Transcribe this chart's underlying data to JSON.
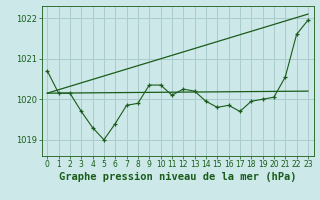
{
  "bg_color": "#cce8e8",
  "grid_color": "#aacccc",
  "line_color": "#1a5c1a",
  "title": "Graphe pression niveau de la mer (hPa)",
  "xlim": [
    -0.5,
    23.5
  ],
  "ylim": [
    1018.6,
    1022.3
  ],
  "yticks": [
    1019,
    1020,
    1021,
    1022
  ],
  "xticks": [
    0,
    1,
    2,
    3,
    4,
    5,
    6,
    7,
    8,
    9,
    10,
    11,
    12,
    13,
    14,
    15,
    16,
    17,
    18,
    19,
    20,
    21,
    22,
    23
  ],
  "series1_x": [
    0,
    1,
    2,
    3,
    4,
    5,
    6,
    7,
    8,
    9,
    10,
    11,
    12,
    13,
    14,
    15,
    16,
    17,
    18,
    19,
    20,
    21,
    22,
    23
  ],
  "series1_y": [
    1020.7,
    1020.15,
    1020.15,
    1019.7,
    1019.3,
    1019.0,
    1019.4,
    1019.85,
    1019.9,
    1020.35,
    1020.35,
    1020.1,
    1020.25,
    1020.2,
    1019.95,
    1019.8,
    1019.85,
    1019.7,
    1019.95,
    1020.0,
    1020.05,
    1020.55,
    1021.6,
    1021.95
  ],
  "series2_x": [
    0,
    23
  ],
  "series2_y": [
    1020.15,
    1020.2
  ],
  "series3_x": [
    0,
    23
  ],
  "series3_y": [
    1020.15,
    1022.1
  ],
  "title_fontsize": 7.5,
  "tick_fontsize": 5.5
}
